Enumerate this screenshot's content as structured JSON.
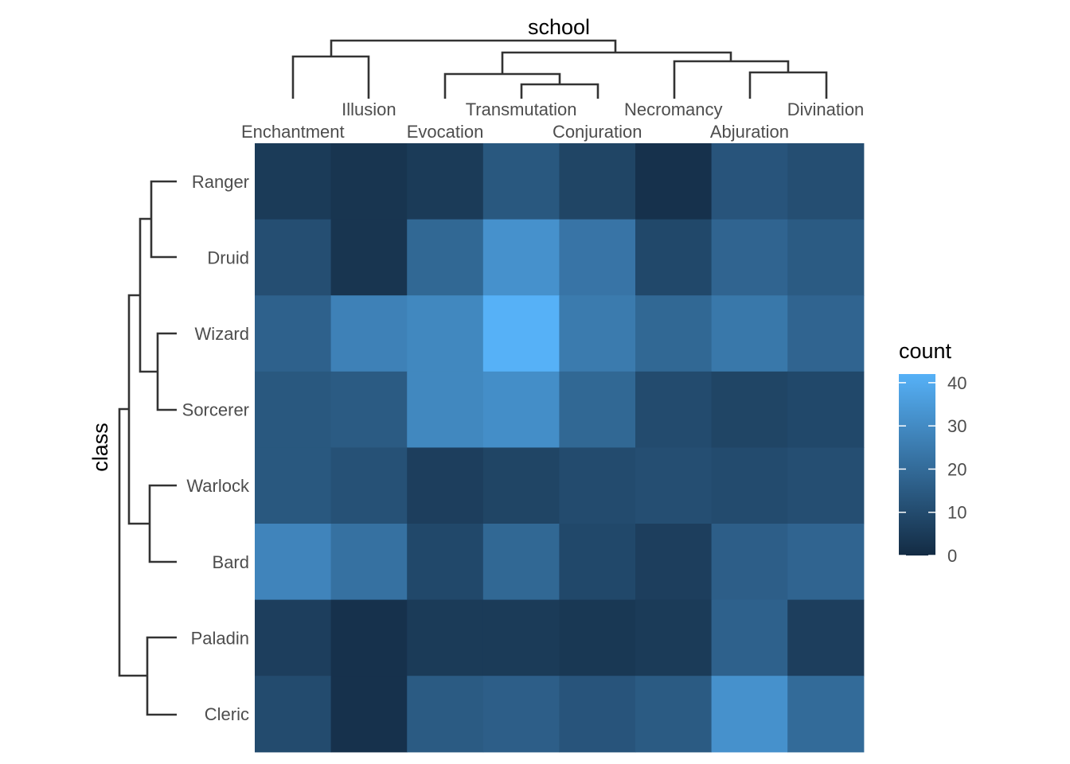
{
  "chart_data": {
    "type": "heatmap",
    "x_title": "school",
    "y_title": "class",
    "x_categories": [
      "Enchantment",
      "Illusion",
      "Evocation",
      "Transmutation",
      "Conjuration",
      "Necromancy",
      "Abjuration",
      "Divination"
    ],
    "y_categories": [
      "Ranger",
      "Druid",
      "Wizard",
      "Sorcerer",
      "Warlock",
      "Bard",
      "Paladin",
      "Cleric"
    ],
    "values": [
      [
        5,
        3,
        5,
        14,
        8,
        2,
        13,
        11
      ],
      [
        11,
        3,
        19,
        32,
        23,
        9,
        18,
        15
      ],
      [
        17,
        27,
        29,
        42,
        25,
        19,
        24,
        18
      ],
      [
        14,
        15,
        29,
        31,
        19,
        10,
        8,
        9
      ],
      [
        14,
        12,
        6,
        8,
        10,
        11,
        10,
        11
      ],
      [
        28,
        22,
        9,
        19,
        9,
        6,
        16,
        18
      ],
      [
        6,
        2,
        5,
        5,
        4,
        5,
        17,
        6
      ],
      [
        10,
        2,
        15,
        16,
        13,
        15,
        32,
        20
      ]
    ],
    "legend": {
      "title": "count",
      "ticks": [
        0,
        10,
        20,
        30,
        40
      ],
      "range": [
        0,
        42
      ],
      "color_low": "#132B43",
      "color_high": "#56B1F7",
      "placement": "right"
    },
    "dendrogram_x": true,
    "dendrogram_y": true
  }
}
